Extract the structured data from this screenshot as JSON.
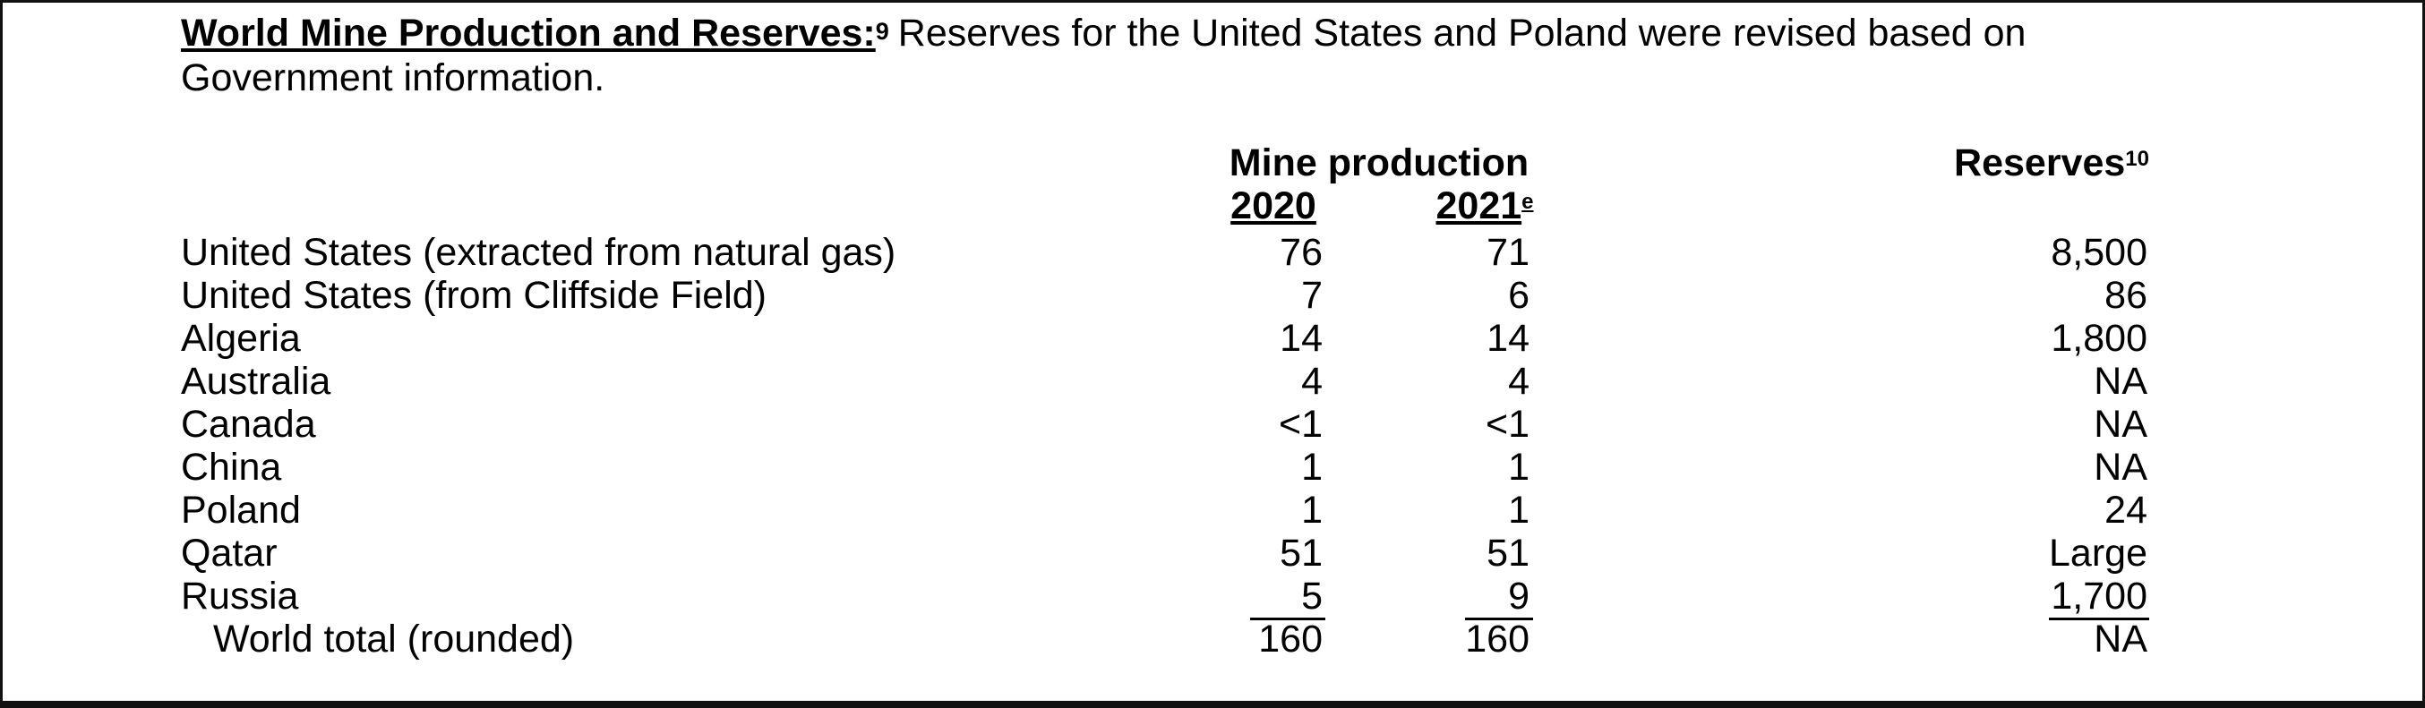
{
  "heading": {
    "title": "World Mine Production and Reserves:",
    "footnote": "9",
    "text_line1": "Reserves for the United States and Poland were revised based on",
    "text_line2": "Government information."
  },
  "columns": {
    "mine_production": "Mine production",
    "year_2020": "2020",
    "year_2021": "2021",
    "year_2021_mark": "e",
    "reserves": "Reserves",
    "reserves_footnote": "10"
  },
  "rows": [
    {
      "country": "United States (extracted from natural gas)",
      "v2020": "76",
      "v2021": "71",
      "reserves": "8,500"
    },
    {
      "country": "United States (from Cliffside Field)",
      "v2020": "7",
      "v2021": "6",
      "reserves": "86"
    },
    {
      "country": "Algeria",
      "v2020": "14",
      "v2021": "14",
      "reserves": "1,800"
    },
    {
      "country": "Australia",
      "v2020": "4",
      "v2021": "4",
      "reserves": "NA"
    },
    {
      "country": "Canada",
      "v2020": "<1",
      "v2021": "<1",
      "reserves": "NA"
    },
    {
      "country": "China",
      "v2020": "1",
      "v2021": "1",
      "reserves": "NA"
    },
    {
      "country": "Poland",
      "v2020": "1",
      "v2021": "1",
      "reserves": "24"
    },
    {
      "country": "Qatar",
      "v2020": "51",
      "v2021": "51",
      "reserves": "Large"
    },
    {
      "country": "Russia",
      "v2020": "5",
      "v2021": "9",
      "reserves": "1,700"
    }
  ],
  "total": {
    "label": "World total (rounded)",
    "v2020": "160",
    "v2021": "160",
    "reserves": "NA"
  }
}
